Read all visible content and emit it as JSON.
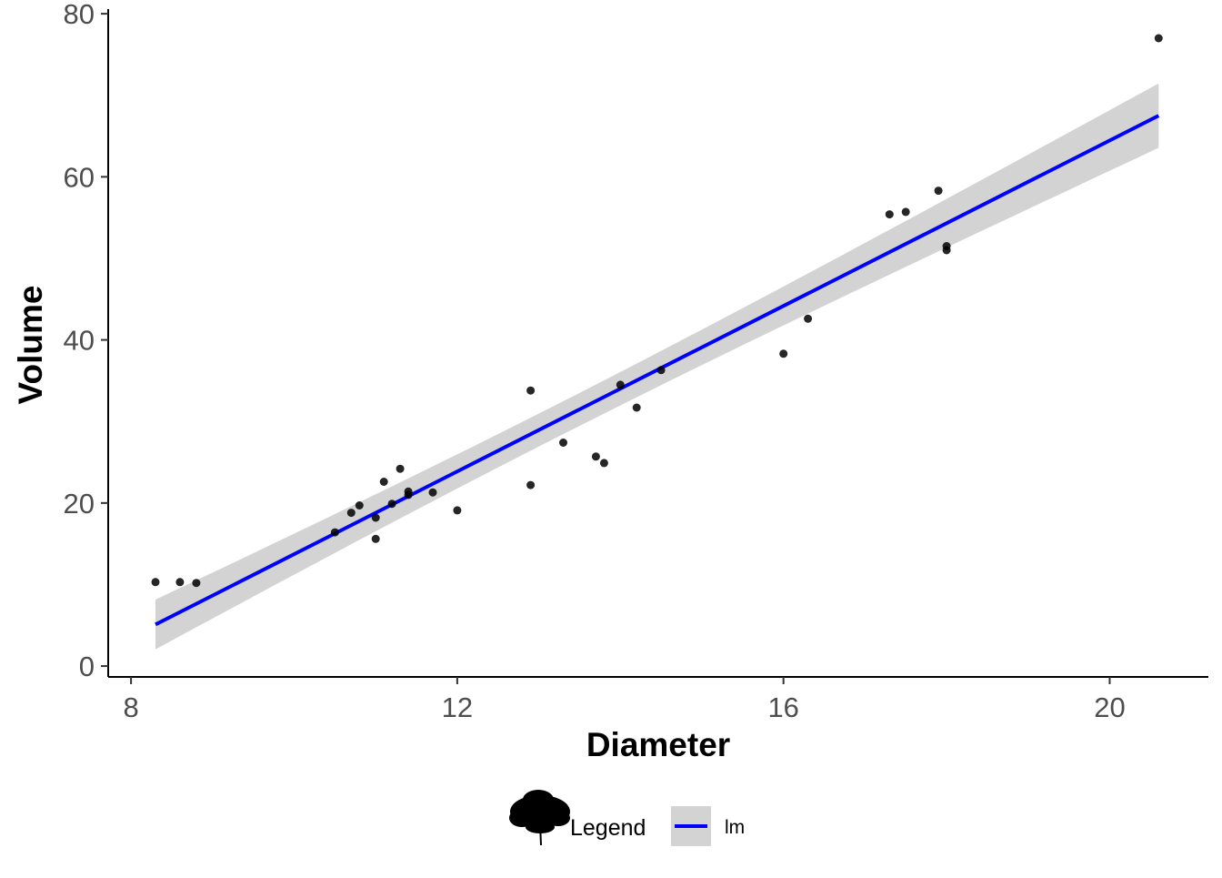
{
  "chart_data": {
    "type": "scatter",
    "xlabel": "Diameter",
    "ylabel": "Volume",
    "xlim": [
      7.72,
      21.21
    ],
    "ylim": [
      -1.33,
      80.57
    ],
    "x_ticks": [
      8,
      12,
      16,
      20
    ],
    "y_ticks": [
      0,
      20,
      40,
      60,
      80
    ],
    "x_tick_labels": [
      "8",
      "12",
      "16",
      "20"
    ],
    "y_tick_labels": [
      "0",
      "20",
      "40",
      "60",
      "80"
    ],
    "grid": false,
    "legend_position": "bottom",
    "series": [
      {
        "kind": "points",
        "color": "#000000",
        "x": [
          8.3,
          8.6,
          8.8,
          10.5,
          10.7,
          10.8,
          11.0,
          11.0,
          11.1,
          11.2,
          11.3,
          11.4,
          11.4,
          11.7,
          12.0,
          12.9,
          12.9,
          13.3,
          13.7,
          13.8,
          14.0,
          14.2,
          14.5,
          16.0,
          16.3,
          17.3,
          17.5,
          17.9,
          18.0,
          18.0,
          20.6
        ],
        "y": [
          10.3,
          10.3,
          10.2,
          16.4,
          18.8,
          19.7,
          15.6,
          18.2,
          22.6,
          19.9,
          24.2,
          21.0,
          21.4,
          21.3,
          19.1,
          22.2,
          33.8,
          27.4,
          25.7,
          24.9,
          34.5,
          31.7,
          36.3,
          38.3,
          42.6,
          55.4,
          55.7,
          58.3,
          51.5,
          51.0,
          77.0
        ]
      },
      {
        "kind": "smooth",
        "name": "lm",
        "color": "#0000ff",
        "ribbon_color": "#d3d3d3",
        "x": [
          8.3,
          20.6
        ],
        "y": [
          5.1,
          67.5
        ],
        "ci_lower": [
          2.1,
          63.6
        ],
        "ci_upper": [
          8.2,
          71.5
        ],
        "ci_center_x": 13.25
      }
    ],
    "legend": {
      "title": "Legend",
      "entries": [
        "lm"
      ],
      "icon": "tree-icon"
    }
  }
}
